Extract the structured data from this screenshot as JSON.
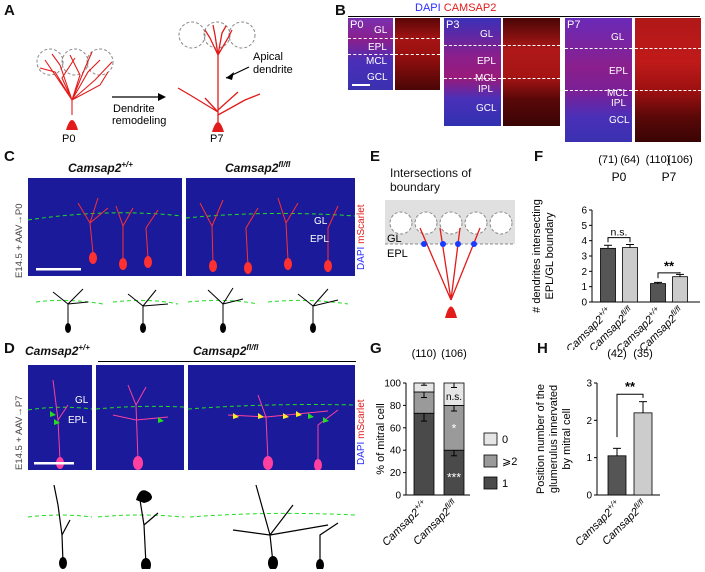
{
  "panels": {
    "A": {
      "letter": "A",
      "stage_start": "P0",
      "stage_end": "P7",
      "arrow_label_1": "Dendrite",
      "arrow_label_2": "remodeling",
      "apical_label_1": "Apical",
      "apical_label_2": "dendrite"
    },
    "B": {
      "letter": "B",
      "title_dapi": "DAPI",
      "title_camsap": "CAMSAP2",
      "colors": {
        "dapi": "#2b2bff",
        "camsap": "#e21b1b"
      },
      "groups": [
        {
          "stage": "P0",
          "layers": [
            "GL",
            "EPL",
            "MCL",
            "GCL"
          ]
        },
        {
          "stage": "P3",
          "layers": [
            "GL",
            "EPL",
            "MCL",
            "IPL",
            "GCL"
          ]
        },
        {
          "stage": "P7",
          "layers": [
            "GL",
            "EPL",
            "MCL",
            "IPL",
            "GCL"
          ]
        }
      ]
    },
    "C": {
      "letter": "C",
      "genotype_wt": "Camsap2",
      "genotype_wt_sup": "+/+",
      "genotype_ko": "Camsap2",
      "genotype_ko_sup": "fl/fl",
      "side_label": "E14.5 + AAV→P0",
      "stain_dapi": "DAPI",
      "stain_mscarlet": "mScarlet",
      "layer_gl": "GL",
      "layer_epl": "EPL"
    },
    "D": {
      "letter": "D",
      "genotype_wt": "Camsap2",
      "genotype_wt_sup": "+/+",
      "genotype_ko": "Camsap2",
      "genotype_ko_sup": "fl/fl",
      "side_label": "E14.5 + AAV→P7",
      "stain_dapi": "DAPI",
      "stain_mscarlet": "mScarlet",
      "layer_gl": "GL",
      "layer_epl": "EPL"
    },
    "E": {
      "letter": "E",
      "title_1": "Intersections of",
      "title_2": "boundary",
      "layer_gl": "GL",
      "layer_epl": "EPL"
    }
  },
  "chart_data": [
    {
      "id": "F",
      "letter": "F",
      "type": "bar",
      "ylabel_1": "# dendrites intersecting",
      "ylabel_2": "EPL/GL boundary",
      "ylim": [
        0,
        6
      ],
      "yticks": [
        "0",
        "1",
        "2",
        "3",
        "4",
        "5",
        "6"
      ],
      "categories": [
        "Camsap2+/+",
        "Camsap2fl/fl",
        "Camsap2+/+",
        "Camsap2fl/fl"
      ],
      "category_base": [
        "Camsap2",
        "Camsap2",
        "Camsap2",
        "Camsap2"
      ],
      "category_sup": [
        "+/+",
        "fl/fl",
        "+/+",
        "fl/fl"
      ],
      "values": [
        3.5,
        3.55,
        1.2,
        1.65
      ],
      "errors": [
        0.2,
        0.2,
        0.08,
        0.15
      ],
      "bar_colors": [
        "#555555",
        "#cccccc",
        "#555555",
        "#cccccc"
      ],
      "n_labels": [
        "(71)",
        "(64)",
        "(110)",
        "(106)"
      ],
      "groups": [
        "P0",
        "P7"
      ],
      "sig": [
        "n.s.",
        "**"
      ]
    },
    {
      "id": "G",
      "letter": "G",
      "type": "stacked-bar",
      "ylabel": "% of mitral cell",
      "ylim": [
        0,
        100
      ],
      "yticks": [
        "0",
        "20",
        "40",
        "60",
        "80",
        "100"
      ],
      "categories": [
        "Camsap2+/+",
        "Camsap2fl/fl"
      ],
      "category_base": [
        "Camsap2",
        "Camsap2"
      ],
      "category_sup": [
        "+/+",
        "fl/fl"
      ],
      "n_labels": [
        "(110)",
        "(106)"
      ],
      "series": [
        {
          "name": "1",
          "values": [
            73,
            40
          ],
          "errors": [
            7,
            5
          ],
          "color": "#4a4a4a"
        },
        {
          "name": "⩾2",
          "values": [
            19,
            40
          ],
          "errors": [
            5,
            5
          ],
          "color": "#9a9a9a"
        },
        {
          "name": "0",
          "values": [
            8,
            20
          ],
          "errors": [
            2,
            4
          ],
          "color": "#e6e6e6"
        }
      ],
      "sig": [
        "n.s.",
        "*",
        "***"
      ]
    },
    {
      "id": "H",
      "letter": "H",
      "type": "bar",
      "ylabel_1": "Position number of the",
      "ylabel_2": "glumerulus innervated",
      "ylabel_3": "by mitral cell",
      "ylim": [
        0,
        3
      ],
      "yticks": [
        "0",
        "1",
        "2",
        "3"
      ],
      "categories": [
        "Camsap2+/+",
        "Camsap2fl/fl"
      ],
      "category_base": [
        "Camsap2",
        "Camsap2"
      ],
      "category_sup": [
        "+/+",
        "fl/fl"
      ],
      "values": [
        1.05,
        2.2
      ],
      "errors": [
        0.2,
        0.3
      ],
      "bar_colors": [
        "#555555",
        "#cccccc"
      ],
      "n_labels": [
        "(42)",
        "(35)"
      ],
      "sig": [
        "**"
      ]
    }
  ]
}
